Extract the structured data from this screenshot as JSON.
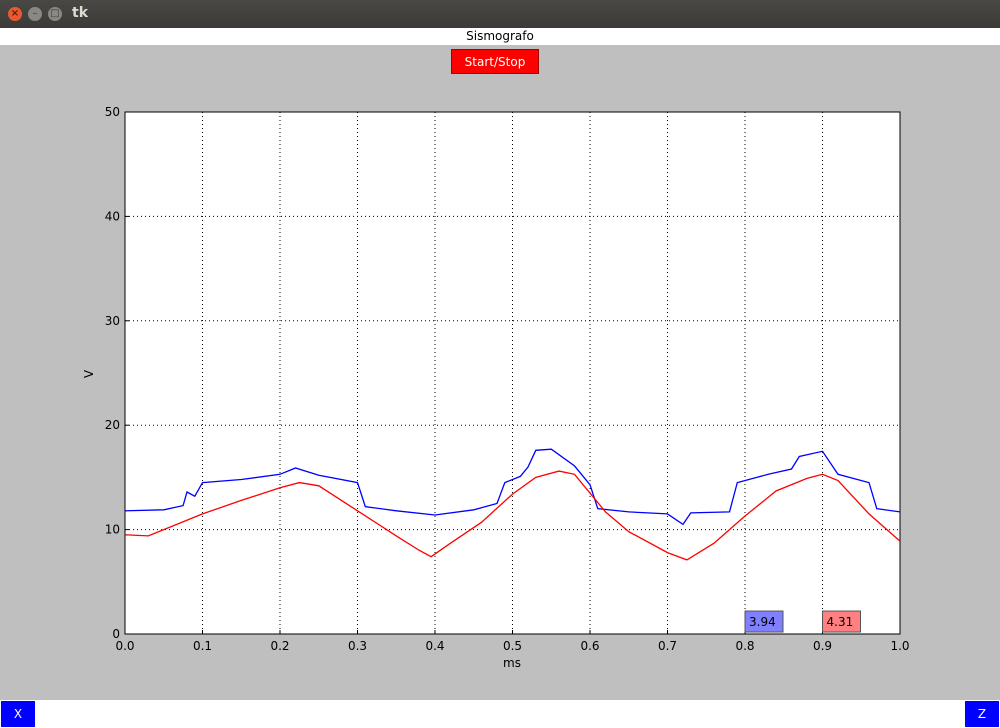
{
  "window": {
    "title": "tk"
  },
  "header": {
    "title": "Sismografo"
  },
  "toolbar": {
    "start_stop_label": "Start/Stop"
  },
  "buttons": {
    "x_label": "X",
    "z_label": "Z"
  },
  "chart_data": {
    "type": "line",
    "xlabel": "ms",
    "ylabel": "V",
    "xlim": [
      0.0,
      1.0
    ],
    "ylim": [
      0,
      50
    ],
    "grid": true,
    "x_ticks": [
      "0.0",
      "0.1",
      "0.2",
      "0.3",
      "0.4",
      "0.5",
      "0.6",
      "0.7",
      "0.8",
      "0.9",
      "1.0"
    ],
    "y_ticks": [
      "0",
      "10",
      "20",
      "30",
      "40",
      "50"
    ],
    "series": [
      {
        "color": "#0000ff",
        "points": [
          [
            0.0,
            11.8
          ],
          [
            0.05,
            11.9
          ],
          [
            0.075,
            12.3
          ],
          [
            0.08,
            13.6
          ],
          [
            0.09,
            13.2
          ],
          [
            0.1,
            14.5
          ],
          [
            0.15,
            14.8
          ],
          [
            0.2,
            15.3
          ],
          [
            0.22,
            15.9
          ],
          [
            0.25,
            15.2
          ],
          [
            0.3,
            14.5
          ],
          [
            0.31,
            12.2
          ],
          [
            0.35,
            11.8
          ],
          [
            0.4,
            11.4
          ],
          [
            0.45,
            11.9
          ],
          [
            0.48,
            12.5
          ],
          [
            0.49,
            14.5
          ],
          [
            0.51,
            15.1
          ],
          [
            0.52,
            16.0
          ],
          [
            0.53,
            17.6
          ],
          [
            0.55,
            17.7
          ],
          [
            0.58,
            16.1
          ],
          [
            0.6,
            14.3
          ],
          [
            0.61,
            12.0
          ],
          [
            0.65,
            11.7
          ],
          [
            0.7,
            11.5
          ],
          [
            0.72,
            10.5
          ],
          [
            0.73,
            11.6
          ],
          [
            0.78,
            11.7
          ],
          [
            0.79,
            14.5
          ],
          [
            0.83,
            15.3
          ],
          [
            0.86,
            15.8
          ],
          [
            0.87,
            17.0
          ],
          [
            0.9,
            17.5
          ],
          [
            0.92,
            15.3
          ],
          [
            0.96,
            14.5
          ],
          [
            0.97,
            12.0
          ],
          [
            1.0,
            11.7
          ]
        ]
      },
      {
        "color": "#ff0000",
        "points": [
          [
            0.0,
            9.5
          ],
          [
            0.03,
            9.4
          ],
          [
            0.06,
            10.3
          ],
          [
            0.1,
            11.5
          ],
          [
            0.15,
            12.8
          ],
          [
            0.2,
            14.0
          ],
          [
            0.225,
            14.5
          ],
          [
            0.25,
            14.2
          ],
          [
            0.3,
            11.8
          ],
          [
            0.35,
            9.4
          ],
          [
            0.38,
            8.0
          ],
          [
            0.395,
            7.4
          ],
          [
            0.42,
            8.7
          ],
          [
            0.46,
            10.7
          ],
          [
            0.5,
            13.4
          ],
          [
            0.53,
            15.0
          ],
          [
            0.56,
            15.6
          ],
          [
            0.58,
            15.3
          ],
          [
            0.62,
            11.7
          ],
          [
            0.65,
            9.8
          ],
          [
            0.7,
            7.8
          ],
          [
            0.725,
            7.1
          ],
          [
            0.76,
            8.7
          ],
          [
            0.8,
            11.3
          ],
          [
            0.84,
            13.7
          ],
          [
            0.88,
            14.9
          ],
          [
            0.9,
            15.3
          ],
          [
            0.92,
            14.7
          ],
          [
            0.96,
            11.5
          ],
          [
            1.0,
            8.9
          ]
        ]
      }
    ],
    "readouts": [
      {
        "value": "3.94",
        "color": "#8080ff"
      },
      {
        "value": "4.31",
        "color": "#ff8080"
      }
    ]
  }
}
